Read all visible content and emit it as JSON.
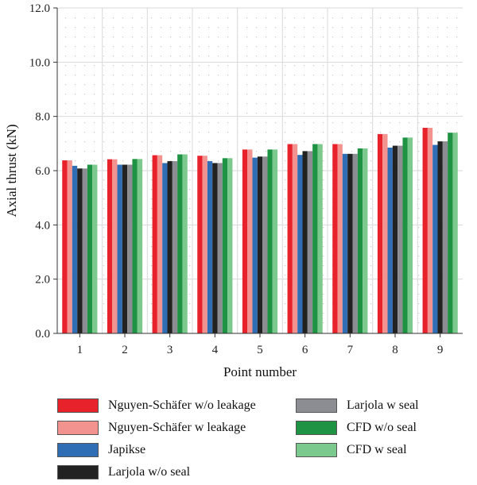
{
  "chart_data": {
    "type": "bar",
    "xlabel": "Point number",
    "ylabel": "Axial thrust (kN)",
    "ylim": [
      0,
      12
    ],
    "yticks": [
      "0.0",
      "2.0",
      "4.0",
      "6.0",
      "8.0",
      "10.0",
      "12.0"
    ],
    "categories": [
      "1",
      "2",
      "3",
      "4",
      "5",
      "6",
      "7",
      "8",
      "9"
    ],
    "grid": true,
    "legend_position": "bottom",
    "series": [
      {
        "name": "Nguyen-Schäfer w/o leakage",
        "color": "#e8222b",
        "values": [
          6.38,
          6.42,
          6.57,
          6.55,
          6.78,
          6.98,
          6.98,
          7.35,
          7.58
        ]
      },
      {
        "name": "Nguyen-Schäfer w leakage",
        "color": "#f29390",
        "values": [
          6.38,
          6.42,
          6.57,
          6.55,
          6.78,
          6.98,
          6.98,
          7.35,
          7.58
        ]
      },
      {
        "name": "Japikse",
        "color": "#2f6db5",
        "values": [
          6.18,
          6.22,
          6.28,
          6.35,
          6.48,
          6.58,
          6.62,
          6.85,
          6.95
        ]
      },
      {
        "name": "Larjola w/o seal",
        "color": "#222222",
        "values": [
          6.08,
          6.22,
          6.35,
          6.28,
          6.52,
          6.72,
          6.62,
          6.92,
          7.08
        ]
      },
      {
        "name": "Larjola w seal",
        "color": "#8c8d92",
        "values": [
          6.08,
          6.22,
          6.35,
          6.28,
          6.52,
          6.72,
          6.62,
          6.92,
          7.08
        ]
      },
      {
        "name": "CFD w/o seal",
        "color": "#1f9344",
        "values": [
          6.22,
          6.43,
          6.6,
          6.46,
          6.78,
          6.98,
          6.82,
          7.22,
          7.4
        ]
      },
      {
        "name": "CFD w seal",
        "color": "#7cc98e",
        "values": [
          6.22,
          6.43,
          6.6,
          6.46,
          6.78,
          6.98,
          6.82,
          7.22,
          7.4
        ]
      }
    ]
  }
}
